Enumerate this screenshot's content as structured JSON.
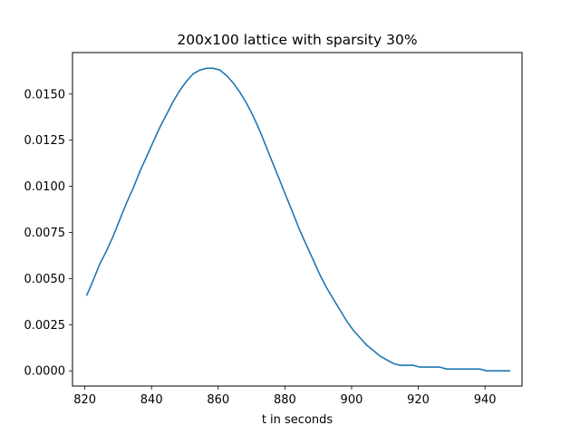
{
  "chart_data": {
    "type": "line",
    "title": "200x100 lattice with sparsity 30%",
    "xlabel": "t in seconds",
    "ylabel": "",
    "xlim": [
      816.3,
      951.1
    ],
    "ylim": [
      -0.000825,
      0.01725
    ],
    "xticks": [
      820,
      840,
      860,
      880,
      900,
      920,
      940
    ],
    "xtick_labels": [
      "820",
      "840",
      "860",
      "880",
      "900",
      "920",
      "940"
    ],
    "yticks": [
      0.0,
      0.0025,
      0.005,
      0.0075,
      0.01,
      0.0125,
      0.015
    ],
    "ytick_labels": [
      "0.0000",
      "0.0025",
      "0.0050",
      "0.0075",
      "0.0100",
      "0.0125",
      "0.0150"
    ],
    "grid": false,
    "series": [
      {
        "color": "#1f77b4",
        "x": [
          820.6,
          822.5,
          824.5,
          826.5,
          828.5,
          830.5,
          832.5,
          834.5,
          836.5,
          838.5,
          840.5,
          842.5,
          844.5,
          846.5,
          848.5,
          850.5,
          852.5,
          854.5,
          856.5,
          858.5,
          860.5,
          862.5,
          864.5,
          866.5,
          868.5,
          870.5,
          872.5,
          874.5,
          876.5,
          878.5,
          880.5,
          882.5,
          884.5,
          886.5,
          888.5,
          890.5,
          892.5,
          894.5,
          896.5,
          898.5,
          900.5,
          902.5,
          904.5,
          906.5,
          908.5,
          910.5,
          912.5,
          914.5,
          916.5,
          918.5,
          920.5,
          922.5,
          924.5,
          926.5,
          928.5,
          930.5,
          932.5,
          934.5,
          936.5,
          938.5,
          940.5,
          942.5,
          944.5,
          946.5,
          947.4
        ],
        "y": [
          0.0041,
          0.0049,
          0.0058,
          0.0065,
          0.0073,
          0.0082,
          0.0091,
          0.0099,
          0.0108,
          0.0116,
          0.0124,
          0.0132,
          0.0139,
          0.0146,
          0.0152,
          0.0157,
          0.0161,
          0.0163,
          0.0164,
          0.0164,
          0.0163,
          0.016,
          0.0156,
          0.0151,
          0.0145,
          0.0138,
          0.013,
          0.0121,
          0.0112,
          0.0103,
          0.0094,
          0.0085,
          0.0076,
          0.0068,
          0.006,
          0.0052,
          0.0045,
          0.0039,
          0.0033,
          0.0027,
          0.0022,
          0.0018,
          0.0014,
          0.0011,
          0.0008,
          0.0006,
          0.0004,
          0.0003,
          0.0003,
          0.0003,
          0.0002,
          0.0002,
          0.0002,
          0.0002,
          0.0001,
          0.0001,
          0.0001,
          0.0001,
          0.0001,
          0.0001,
          0.0,
          0.0,
          0.0,
          0.0,
          0.0
        ]
      }
    ]
  }
}
